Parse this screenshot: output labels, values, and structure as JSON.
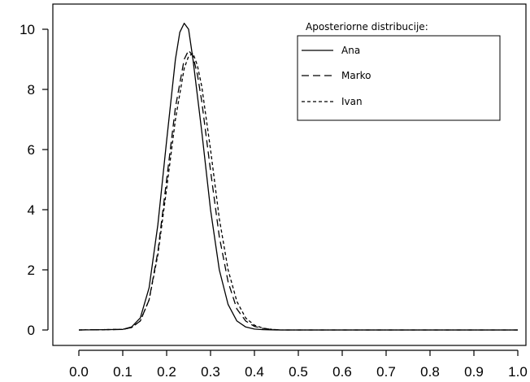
{
  "chart_data": {
    "type": "line",
    "title": "",
    "xlabel": "",
    "ylabel": "",
    "xlim": [
      0.0,
      1.0
    ],
    "ylim": [
      0,
      10.5
    ],
    "x_ticks": [
      "0.0",
      "0.1",
      "0.2",
      "0.3",
      "0.4",
      "0.5",
      "0.6",
      "0.7",
      "0.8",
      "0.9",
      "1.0"
    ],
    "y_ticks": [
      "0",
      "2",
      "4",
      "6",
      "8",
      "10"
    ],
    "grid": false,
    "legend": {
      "title": "Aposteriorne distribucije:",
      "placement": "top-right",
      "entries": [
        "Ana",
        "Marko",
        "Ivan"
      ]
    },
    "series": [
      {
        "name": "Ana",
        "line_style": "solid",
        "x": [
          0.0,
          0.1,
          0.12,
          0.14,
          0.16,
          0.18,
          0.2,
          0.22,
          0.23,
          0.24,
          0.25,
          0.26,
          0.28,
          0.3,
          0.32,
          0.34,
          0.36,
          0.38,
          0.4,
          0.42,
          0.45,
          1.0
        ],
        "y": [
          0,
          0.02,
          0.1,
          0.4,
          1.4,
          3.5,
          6.3,
          9.0,
          9.9,
          10.2,
          10.0,
          9.0,
          6.6,
          4.0,
          2.0,
          0.85,
          0.3,
          0.1,
          0.03,
          0.01,
          0,
          0
        ]
      },
      {
        "name": "Marko",
        "line_style": "dashed",
        "x": [
          0.0,
          0.1,
          0.12,
          0.14,
          0.16,
          0.18,
          0.2,
          0.22,
          0.24,
          0.25,
          0.26,
          0.27,
          0.28,
          0.3,
          0.32,
          0.34,
          0.36,
          0.38,
          0.4,
          0.42,
          0.44,
          0.46,
          1.0
        ],
        "y": [
          0,
          0.02,
          0.08,
          0.3,
          1.0,
          2.6,
          5.0,
          7.4,
          9.0,
          9.3,
          9.1,
          8.5,
          7.6,
          5.3,
          3.1,
          1.6,
          0.7,
          0.3,
          0.12,
          0.05,
          0.02,
          0,
          0
        ]
      },
      {
        "name": "Ivan",
        "line_style": "dotted",
        "x": [
          0.0,
          0.1,
          0.12,
          0.14,
          0.16,
          0.18,
          0.2,
          0.22,
          0.24,
          0.25,
          0.26,
          0.27,
          0.28,
          0.3,
          0.32,
          0.34,
          0.36,
          0.38,
          0.4,
          0.42,
          0.44,
          0.46,
          1.0
        ],
        "y": [
          0,
          0.02,
          0.08,
          0.3,
          1.0,
          2.5,
          4.7,
          7.0,
          8.7,
          9.1,
          9.2,
          8.8,
          8.1,
          6.0,
          3.7,
          2.0,
          0.95,
          0.4,
          0.16,
          0.06,
          0.02,
          0,
          0
        ]
      }
    ],
    "colors": {
      "line": "#000000",
      "axis": "#000000",
      "background": "#ffffff"
    }
  }
}
